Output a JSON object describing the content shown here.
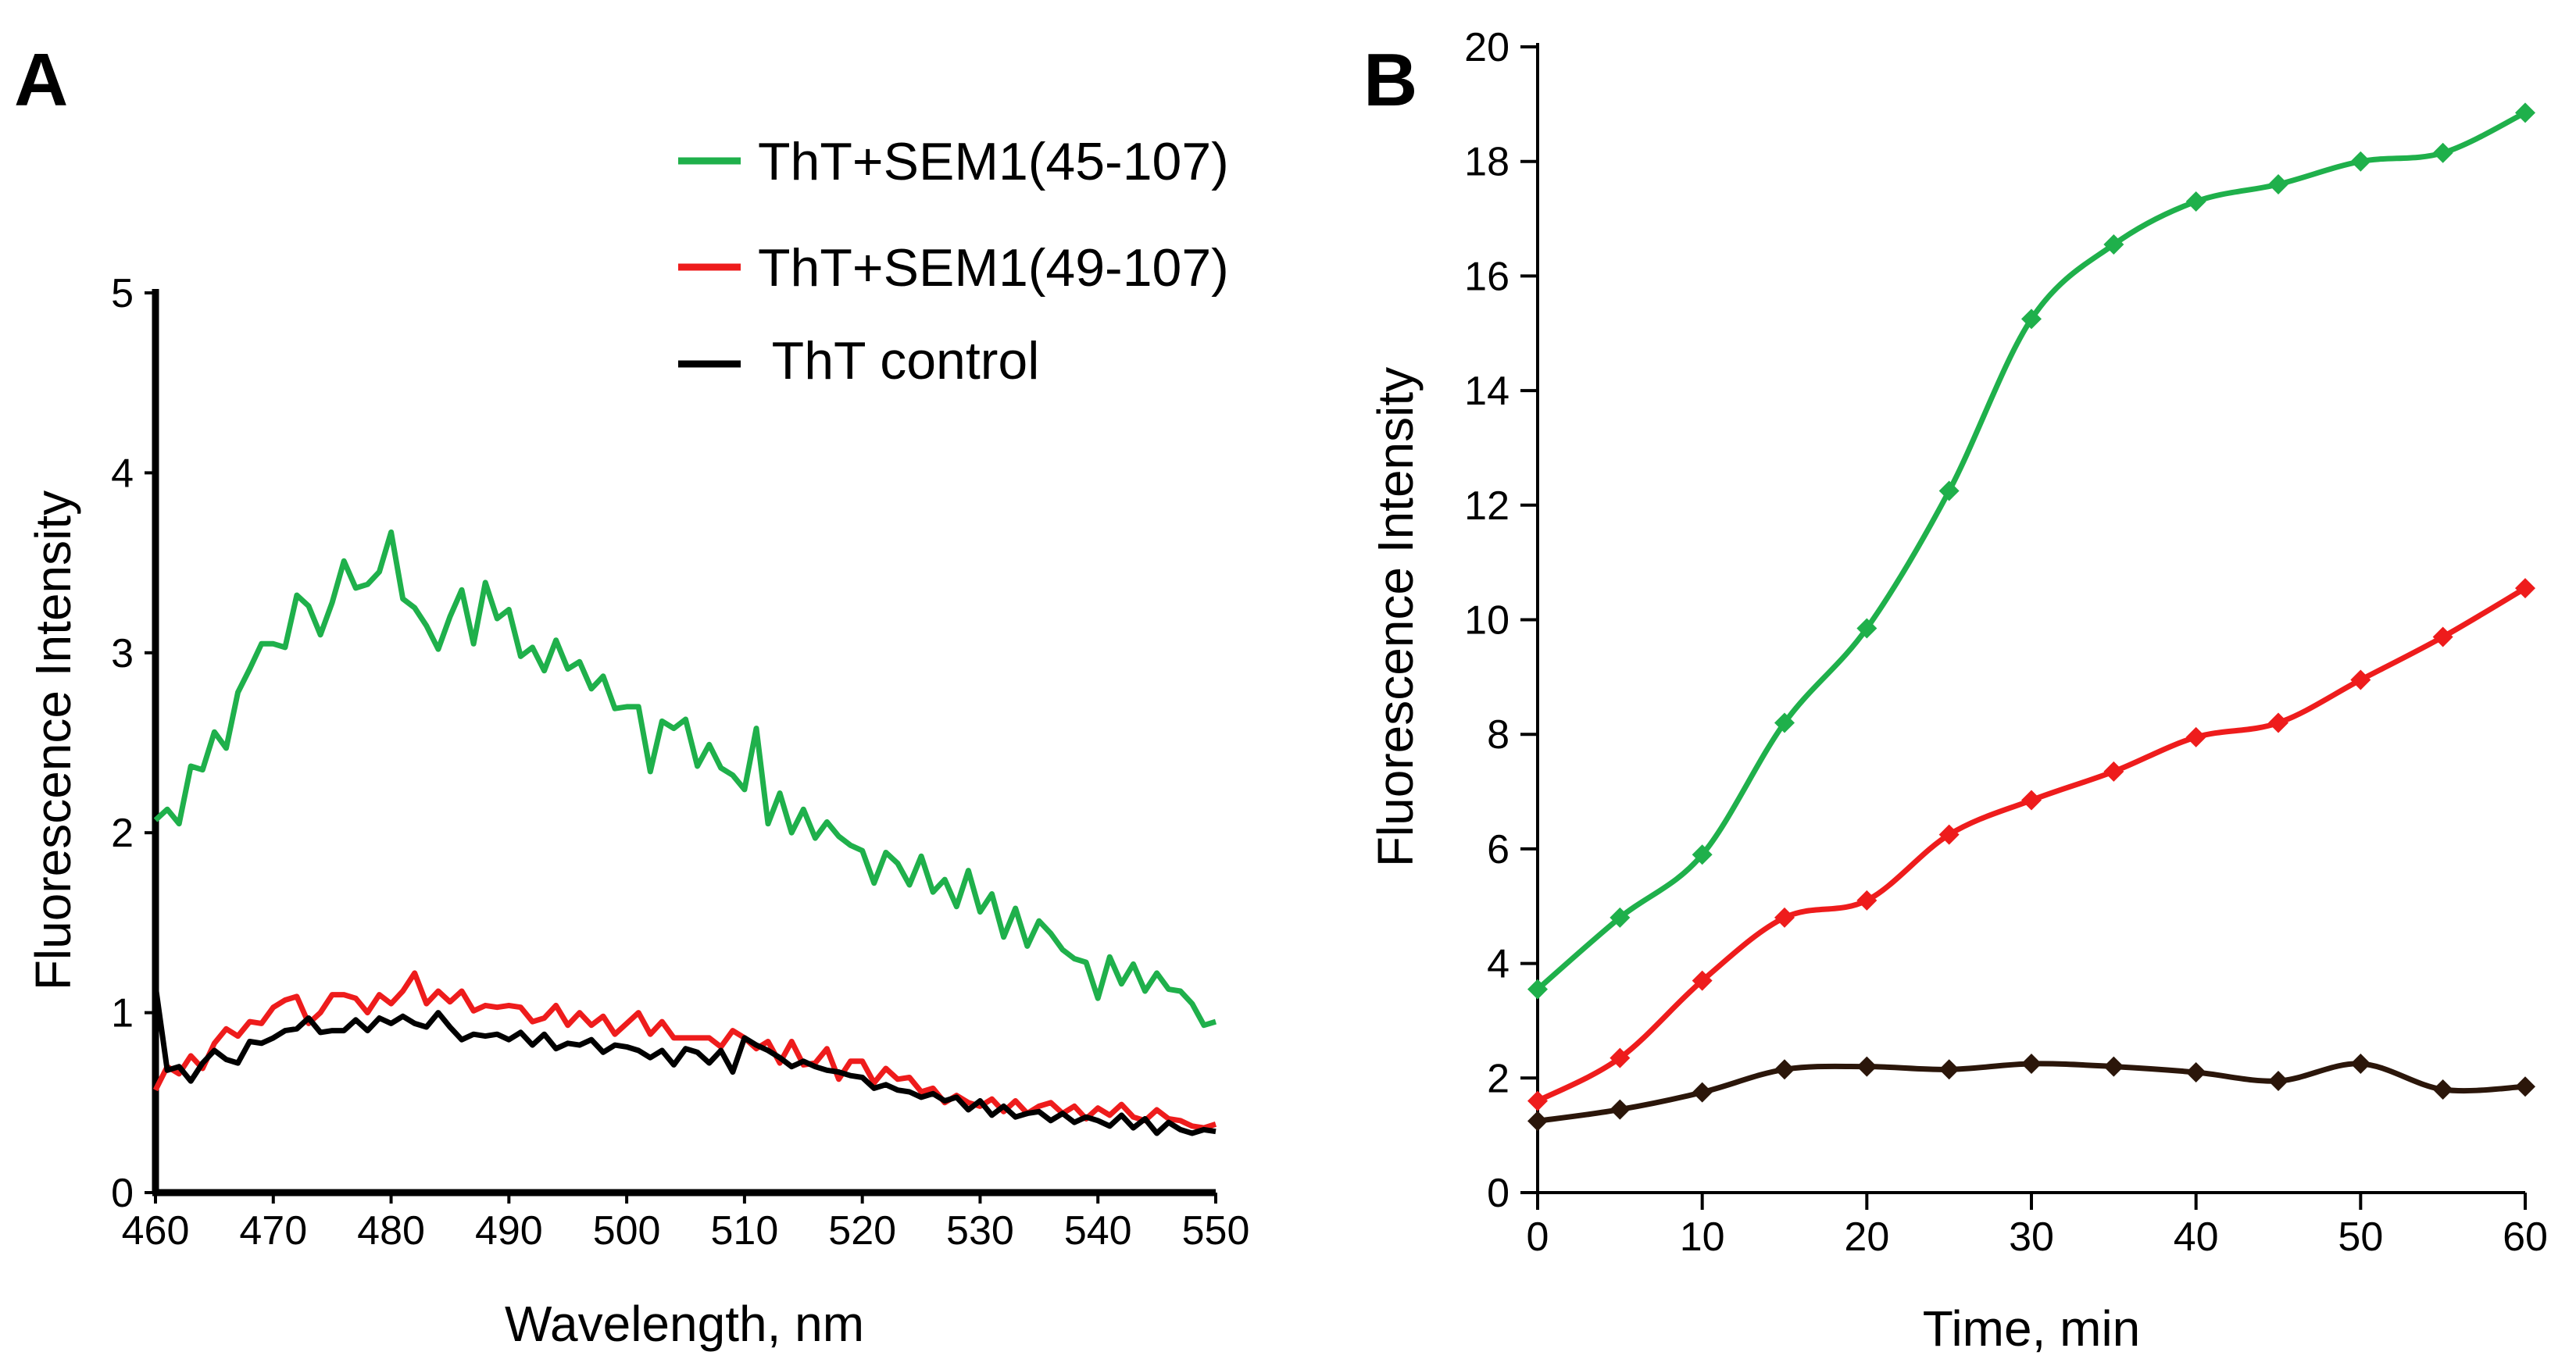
{
  "panels": {
    "a": {
      "label": "A"
    },
    "b": {
      "label": "B"
    }
  },
  "legend": {
    "items": [
      {
        "label": "ThT+SEM1(45-107)",
        "color": "#1fb04b"
      },
      {
        "label": "ThT+SEM1(49-107)",
        "color": "#ee1c1c"
      },
      {
        "label": " ThT control",
        "color": "#000000"
      }
    ]
  },
  "chart_data": [
    {
      "type": "line",
      "panel": "A",
      "title": "",
      "xlabel": "Wavelength, nm",
      "ylabel": "Fluorescence Intensity",
      "xlim": [
        460,
        550
      ],
      "ylim": [
        0,
        5
      ],
      "x_ticks": [
        "460",
        "470",
        "480",
        "490",
        "500",
        "510",
        "520",
        "530",
        "540",
        "550"
      ],
      "y_ticks": [
        "0",
        "1",
        "2",
        "3",
        "4",
        "5"
      ],
      "grid": false,
      "series": [
        {
          "name": "ThT+SEM1(45-107)",
          "color": "#1fb04b",
          "x": [
            460,
            461,
            462,
            463,
            464,
            465,
            466,
            467,
            468,
            469,
            470,
            471,
            472,
            473,
            474,
            475,
            476,
            477,
            478,
            479,
            480,
            481,
            482,
            483,
            484,
            485,
            486,
            487,
            488,
            489,
            490,
            491,
            492,
            493,
            494,
            495,
            496,
            497,
            498,
            499,
            500,
            501,
            502,
            503,
            504,
            505,
            506,
            507,
            508,
            509,
            510,
            511,
            512,
            513,
            514,
            515,
            516,
            517,
            518,
            519,
            520,
            521,
            522,
            523,
            524,
            525,
            526,
            527,
            528,
            529,
            530,
            531,
            532,
            533,
            534,
            535,
            536,
            537,
            538,
            539,
            540,
            541,
            542,
            543,
            544,
            545,
            546,
            547,
            548,
            549,
            550
          ],
          "y": [
            2.07,
            2.13,
            2.05,
            2.37,
            2.35,
            2.56,
            2.47,
            2.78,
            2.91,
            3.05,
            3.05,
            3.03,
            3.32,
            3.26,
            3.1,
            3.28,
            3.51,
            3.36,
            3.38,
            3.45,
            3.67,
            3.3,
            3.25,
            3.15,
            3.02,
            3.2,
            3.35,
            3.05,
            3.39,
            3.19,
            3.24,
            2.98,
            3.03,
            2.9,
            3.07,
            2.91,
            2.95,
            2.8,
            2.87,
            2.69,
            2.7,
            2.7,
            2.34,
            2.62,
            2.58,
            2.63,
            2.37,
            2.49,
            2.36,
            2.32,
            2.24,
            2.58,
            2.05,
            2.22,
            2.0,
            2.13,
            1.97,
            2.06,
            1.98,
            1.93,
            1.9,
            1.72,
            1.89,
            1.83,
            1.71,
            1.87,
            1.67,
            1.74,
            1.59,
            1.79,
            1.56,
            1.66,
            1.42,
            1.58,
            1.37,
            1.51,
            1.44,
            1.35,
            1.3,
            1.28,
            1.08,
            1.31,
            1.16,
            1.27,
            1.12,
            1.22,
            1.13,
            1.12,
            1.05,
            0.93,
            0.95
          ]
        },
        {
          "name": "ThT+SEM1(49-107)",
          "color": "#ee1c1c",
          "x": [
            460,
            461,
            462,
            463,
            464,
            465,
            466,
            467,
            468,
            469,
            470,
            471,
            472,
            473,
            474,
            475,
            476,
            477,
            478,
            479,
            480,
            481,
            482,
            483,
            484,
            485,
            486,
            487,
            488,
            489,
            490,
            491,
            492,
            493,
            494,
            495,
            496,
            497,
            498,
            499,
            500,
            501,
            502,
            503,
            504,
            505,
            506,
            507,
            508,
            509,
            510,
            511,
            512,
            513,
            514,
            515,
            516,
            517,
            518,
            519,
            520,
            521,
            522,
            523,
            524,
            525,
            526,
            527,
            528,
            529,
            530,
            531,
            532,
            533,
            534,
            535,
            536,
            537,
            538,
            539,
            540,
            541,
            542,
            543,
            544,
            545,
            546,
            547,
            548,
            549,
            550
          ],
          "y": [
            0.57,
            0.7,
            0.66,
            0.76,
            0.69,
            0.83,
            0.91,
            0.87,
            0.95,
            0.94,
            1.03,
            1.07,
            1.09,
            0.94,
            1.0,
            1.1,
            1.1,
            1.08,
            1.0,
            1.1,
            1.05,
            1.12,
            1.22,
            1.05,
            1.12,
            1.06,
            1.12,
            1.01,
            1.04,
            1.03,
            1.04,
            1.03,
            0.95,
            0.97,
            1.04,
            0.93,
            1.0,
            0.93,
            0.98,
            0.88,
            0.94,
            1.0,
            0.88,
            0.95,
            0.86,
            0.86,
            0.86,
            0.86,
            0.81,
            0.9,
            0.86,
            0.8,
            0.84,
            0.72,
            0.84,
            0.71,
            0.72,
            0.8,
            0.63,
            0.73,
            0.73,
            0.61,
            0.69,
            0.63,
            0.64,
            0.56,
            0.58,
            0.5,
            0.54,
            0.5,
            0.48,
            0.52,
            0.45,
            0.51,
            0.44,
            0.48,
            0.5,
            0.44,
            0.48,
            0.41,
            0.47,
            0.43,
            0.49,
            0.42,
            0.4,
            0.46,
            0.41,
            0.4,
            0.37,
            0.36,
            0.38
          ]
        },
        {
          "name": "ThT control",
          "color": "#000000",
          "x": [
            460,
            461,
            462,
            463,
            464,
            465,
            466,
            467,
            468,
            469,
            470,
            471,
            472,
            473,
            474,
            475,
            476,
            477,
            478,
            479,
            480,
            481,
            482,
            483,
            484,
            485,
            486,
            487,
            488,
            489,
            490,
            491,
            492,
            493,
            494,
            495,
            496,
            497,
            498,
            499,
            500,
            501,
            502,
            503,
            504,
            505,
            506,
            507,
            508,
            509,
            510,
            511,
            512,
            513,
            514,
            515,
            516,
            517,
            518,
            519,
            520,
            521,
            522,
            523,
            524,
            525,
            526,
            527,
            528,
            529,
            530,
            531,
            532,
            533,
            534,
            535,
            536,
            537,
            538,
            539,
            540,
            541,
            542,
            543,
            544,
            545,
            546,
            547,
            548,
            549,
            550
          ],
          "y": [
            1.15,
            0.68,
            0.7,
            0.62,
            0.72,
            0.79,
            0.74,
            0.72,
            0.84,
            0.83,
            0.86,
            0.9,
            0.91,
            0.97,
            0.89,
            0.9,
            0.9,
            0.96,
            0.9,
            0.97,
            0.94,
            0.98,
            0.94,
            0.92,
            1.0,
            0.92,
            0.85,
            0.88,
            0.87,
            0.88,
            0.85,
            0.89,
            0.82,
            0.88,
            0.8,
            0.83,
            0.82,
            0.85,
            0.78,
            0.82,
            0.81,
            0.79,
            0.75,
            0.79,
            0.71,
            0.8,
            0.78,
            0.72,
            0.79,
            0.67,
            0.86,
            0.82,
            0.79,
            0.75,
            0.7,
            0.73,
            0.7,
            0.68,
            0.67,
            0.65,
            0.64,
            0.58,
            0.6,
            0.57,
            0.56,
            0.53,
            0.55,
            0.51,
            0.53,
            0.46,
            0.51,
            0.43,
            0.48,
            0.42,
            0.44,
            0.45,
            0.4,
            0.44,
            0.39,
            0.42,
            0.4,
            0.37,
            0.43,
            0.36,
            0.41,
            0.33,
            0.39,
            0.35,
            0.33,
            0.35,
            0.34
          ]
        }
      ]
    },
    {
      "type": "line",
      "panel": "B",
      "title": "",
      "xlabel": "Time, min",
      "ylabel": "Fluorescence Intensity",
      "xlim": [
        0,
        60
      ],
      "ylim": [
        0,
        20
      ],
      "x_ticks": [
        "0",
        "10",
        "20",
        "30",
        "40",
        "50",
        "60"
      ],
      "y_ticks": [
        "0",
        "2",
        "4",
        "6",
        "8",
        "10",
        "12",
        "14",
        "16",
        "18",
        "20"
      ],
      "grid": false,
      "marker": "diamond",
      "series": [
        {
          "name": "ThT+SEM1(45-107)",
          "color": "#1fb04b",
          "x": [
            0,
            5,
            10,
            15,
            20,
            25,
            30,
            35,
            40,
            45,
            50,
            55,
            60
          ],
          "y": [
            3.55,
            4.8,
            5.9,
            8.2,
            9.85,
            12.25,
            15.25,
            16.55,
            17.3,
            17.6,
            18.0,
            18.15,
            18.85
          ]
        },
        {
          "name": "ThT+SEM1(49-107)",
          "color": "#ee1c1c",
          "x": [
            0,
            5,
            10,
            15,
            20,
            25,
            30,
            35,
            40,
            45,
            50,
            55,
            60
          ],
          "y": [
            1.6,
            2.35,
            3.7,
            4.8,
            5.1,
            6.25,
            6.85,
            7.35,
            7.95,
            8.2,
            8.95,
            9.7,
            10.55
          ]
        },
        {
          "name": "ThT control",
          "color": "#2b160a",
          "x": [
            0,
            5,
            10,
            15,
            20,
            25,
            30,
            35,
            40,
            45,
            50,
            55,
            60
          ],
          "y": [
            1.25,
            1.45,
            1.75,
            2.15,
            2.2,
            2.15,
            2.25,
            2.2,
            2.1,
            1.95,
            2.25,
            1.8,
            1.85
          ]
        }
      ]
    }
  ]
}
